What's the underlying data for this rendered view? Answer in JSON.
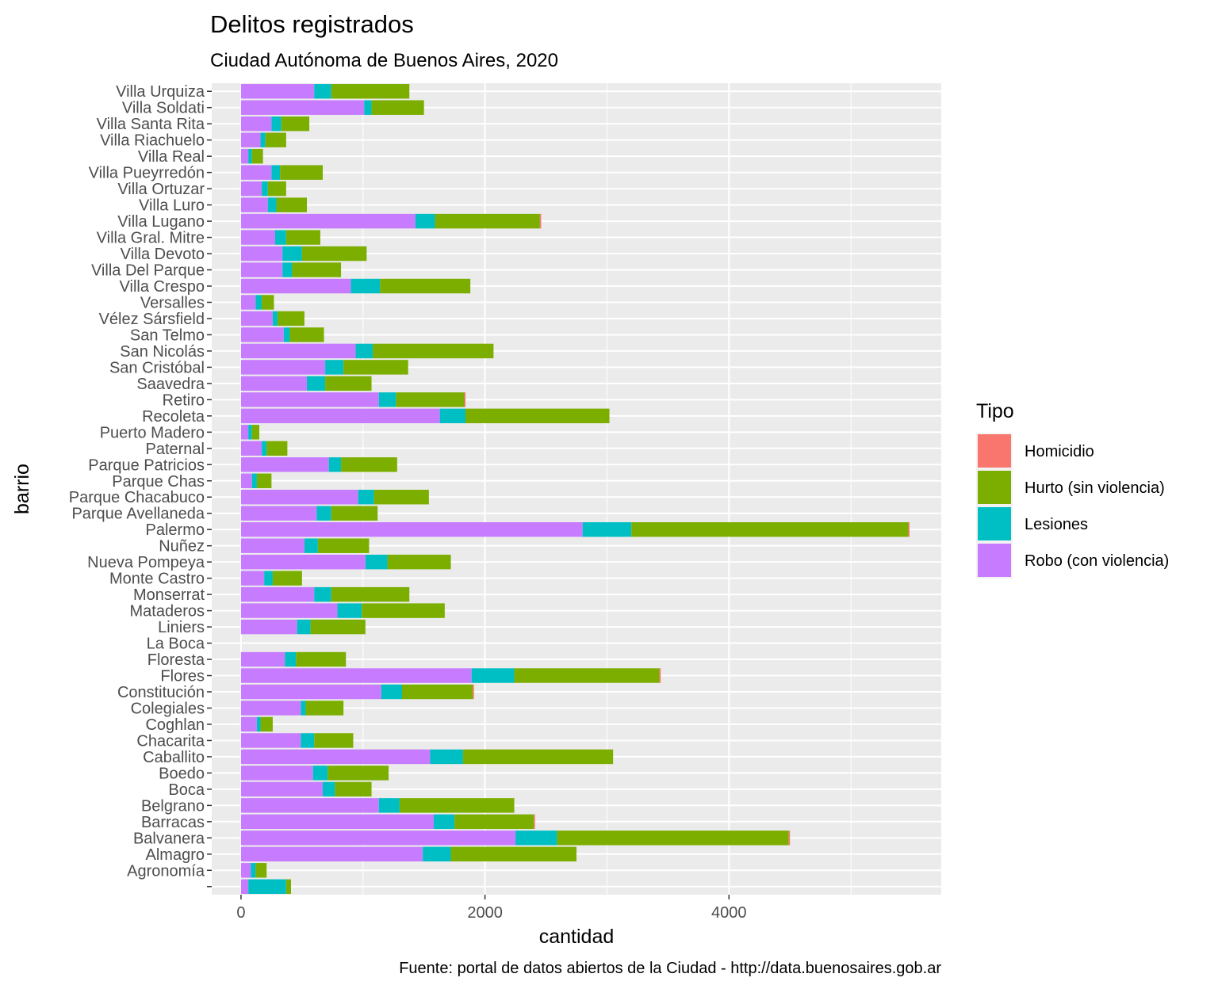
{
  "chart_data": {
    "type": "bar",
    "orientation": "horizontal",
    "stacked": true,
    "title": "Delitos registrados",
    "subtitle": "Ciudad Autónoma de Buenos Aires, 2020",
    "caption": "Fuente: portal de datos abiertos de la Ciudad - http://data.buenosaires.gob.ar",
    "xlabel": "cantidad",
    "ylabel": "barrio",
    "xlim": [
      -240,
      5740
    ],
    "x_ticks": [
      0,
      2000,
      4000
    ],
    "x_tick_labels": [
      "0",
      "2000",
      "4000"
    ],
    "grid": true,
    "legend": {
      "title": "Tipo",
      "position": "right"
    },
    "categories": [
      "",
      "Agronomía",
      "Almagro",
      "Balvanera",
      "Barracas",
      "Belgrano",
      "Boca",
      "Boedo",
      "Caballito",
      "Chacarita",
      "Coghlan",
      "Colegiales",
      "Constitución",
      "Flores",
      "Floresta",
      "La Boca",
      "Liniers",
      "Mataderos",
      "Monserrat",
      "Monte Castro",
      "Nueva Pompeya",
      "Nuñez",
      "Palermo",
      "Parque Avellaneda",
      "Parque Chacabuco",
      "Parque Chas",
      "Parque Patricios",
      "Paternal",
      "Puerto Madero",
      "Recoleta",
      "Retiro",
      "Saavedra",
      "San Cristóbal",
      "San Nicolás",
      "San Telmo",
      "Vélez Sársfield",
      "Versalles",
      "Villa Crespo",
      "Villa Del Parque",
      "Villa Devoto",
      "Villa Gral. Mitre",
      "Villa Lugano",
      "Villa Luro",
      "Villa Ortuzar",
      "Villa Pueyrredón",
      "Villa Real",
      "Villa Riachuelo",
      "Villa Santa Rita",
      "Villa Soldati",
      "Villa Urquiza"
    ],
    "series": [
      {
        "name": "Robo (con violencia)",
        "color": "#C77CFF",
        "values": [
          60,
          80,
          1490,
          2250,
          1580,
          1130,
          670,
          590,
          1550,
          490,
          130,
          490,
          1150,
          1890,
          360,
          0,
          460,
          790,
          600,
          190,
          1020,
          520,
          2800,
          620,
          960,
          90,
          720,
          170,
          60,
          1630,
          1130,
          540,
          690,
          940,
          350,
          260,
          120,
          900,
          340,
          340,
          280,
          1430,
          220,
          170,
          250,
          60,
          160,
          250,
          1010,
          600
        ]
      },
      {
        "name": "Lesiones",
        "color": "#00BFC4",
        "values": [
          310,
          40,
          230,
          340,
          170,
          170,
          100,
          120,
          270,
          110,
          30,
          40,
          170,
          350,
          90,
          0,
          110,
          200,
          140,
          70,
          180,
          110,
          400,
          120,
          130,
          40,
          100,
          40,
          30,
          210,
          140,
          150,
          150,
          140,
          50,
          40,
          50,
          240,
          80,
          160,
          90,
          160,
          70,
          50,
          70,
          30,
          40,
          80,
          60,
          140
        ]
      },
      {
        "name": "Hurto (sin violencia)",
        "color": "#7CAE00",
        "values": [
          40,
          90,
          1030,
          1900,
          650,
          940,
          300,
          500,
          1230,
          320,
          100,
          310,
          580,
          1190,
          410,
          0,
          450,
          680,
          640,
          240,
          520,
          420,
          2270,
          380,
          450,
          120,
          460,
          170,
          60,
          1180,
          560,
          380,
          530,
          990,
          280,
          220,
          100,
          740,
          400,
          530,
          280,
          860,
          250,
          150,
          350,
          90,
          170,
          230,
          430,
          640
        ]
      },
      {
        "name": "Homicidio",
        "color": "#F8766D",
        "values": [
          0,
          0,
          0,
          10,
          10,
          0,
          0,
          0,
          0,
          0,
          0,
          0,
          10,
          10,
          0,
          0,
          0,
          0,
          0,
          0,
          0,
          0,
          10,
          0,
          0,
          0,
          0,
          0,
          0,
          0,
          10,
          0,
          0,
          0,
          0,
          0,
          0,
          0,
          0,
          0,
          0,
          10,
          0,
          0,
          0,
          0,
          0,
          0,
          0,
          0
        ]
      }
    ],
    "legend_order": [
      "Homicidio",
      "Hurto (sin violencia)",
      "Lesiones",
      "Robo (con violencia)"
    ]
  }
}
